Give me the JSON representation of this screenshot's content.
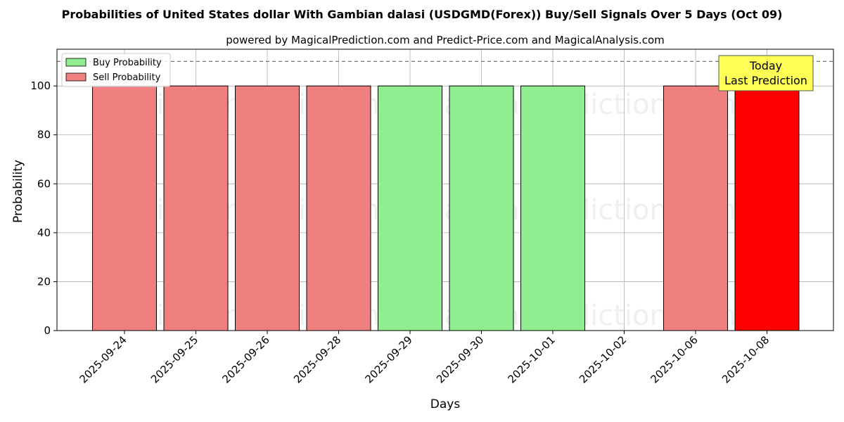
{
  "chart_data": {
    "type": "bar",
    "title": "Probabilities of United States dollar With Gambian dalasi (USDGMD(Forex)) Buy/Sell Signals Over 5 Days (Oct 09)",
    "subtitle": "powered by MagicalPrediction.com and Predict-Price.com and MagicalAnalysis.com",
    "xlabel": "Days",
    "ylabel": "Probability",
    "ylim": [
      0,
      115
    ],
    "yticks": [
      0,
      20,
      40,
      60,
      80,
      100
    ],
    "grid": true,
    "categories": [
      "2025-09-24",
      "2025-09-25",
      "2025-09-26",
      "2025-09-28",
      "2025-09-29",
      "2025-09-30",
      "2025-10-01",
      "2025-10-02",
      "2025-10-06",
      "2025-10-08"
    ],
    "series": [
      {
        "name": "Buy Probability",
        "color": "#90ee90",
        "values": [
          0,
          0,
          0,
          0,
          100,
          100,
          100,
          0,
          0,
          0
        ]
      },
      {
        "name": "Sell Probability",
        "color": "#f08080",
        "values": [
          100,
          100,
          100,
          100,
          0,
          0,
          0,
          0,
          100,
          100
        ]
      }
    ],
    "highlight": {
      "category": "2025-10-08",
      "color": "#ff0000"
    },
    "reference_line": {
      "y": 110,
      "style": "dashed"
    },
    "annotation": {
      "line1": "Today",
      "line2": "Last Prediction",
      "background": "#ffff55"
    },
    "legend": {
      "position": "top-left",
      "entries": [
        "Buy Probability",
        "Sell Probability"
      ]
    },
    "watermarks": [
      "MagicalAnalysis.com",
      "MagicalPrediction.com"
    ]
  }
}
